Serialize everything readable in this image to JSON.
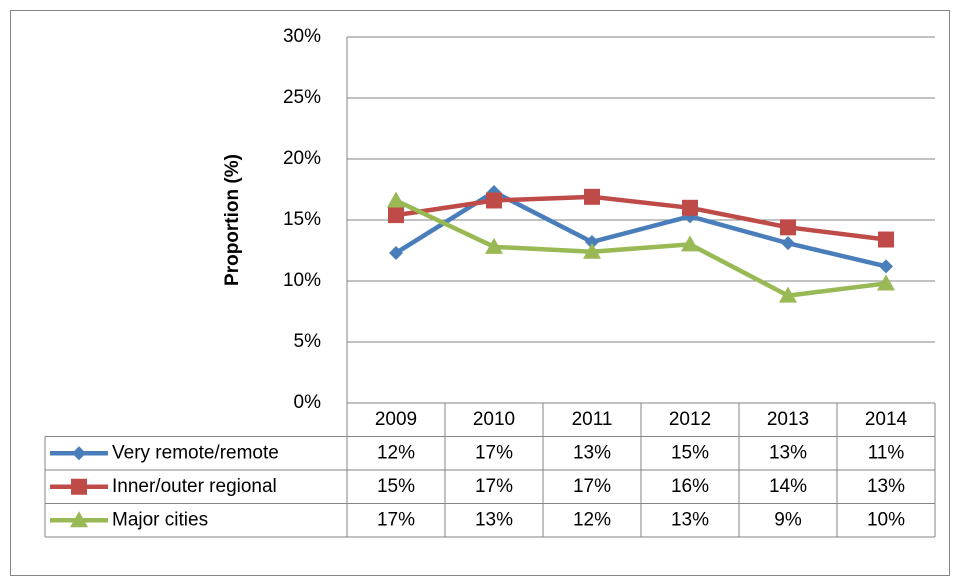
{
  "chart_data": {
    "type": "line",
    "y_label": "Proportion (%)",
    "categories": [
      "2009",
      "2010",
      "2011",
      "2012",
      "2013",
      "2014"
    ],
    "ylim": [
      0,
      30
    ],
    "yticks": [
      {
        "value": 0,
        "label": "0%"
      },
      {
        "value": 5,
        "label": "5%"
      },
      {
        "value": 10,
        "label": "10%"
      },
      {
        "value": 15,
        "label": "15%"
      },
      {
        "value": 20,
        "label": "20%"
      },
      {
        "value": 25,
        "label": "25%"
      },
      {
        "value": 30,
        "label": "30%"
      }
    ],
    "grid": true,
    "series": [
      {
        "name": "Very remote/remote",
        "color": "#4a7ebb",
        "marker": "diamond",
        "values": [
          12.3,
          17.3,
          13.2,
          15.3,
          13.1,
          11.2
        ],
        "value_labels": [
          "12%",
          "17%",
          "13%",
          "15%",
          "13%",
          "11%"
        ]
      },
      {
        "name": "Inner/outer regional",
        "color": "#be4b48",
        "marker": "square",
        "values": [
          15.4,
          16.6,
          16.9,
          16.0,
          14.4,
          13.4
        ],
        "value_labels": [
          "15%",
          "17%",
          "17%",
          "16%",
          "14%",
          "13%"
        ]
      },
      {
        "name": "Major cities",
        "color": "#98b954",
        "marker": "triangle",
        "values": [
          16.6,
          12.8,
          12.4,
          13.0,
          8.8,
          9.8
        ],
        "value_labels": [
          "17%",
          "13%",
          "12%",
          "13%",
          "9%",
          "10%"
        ]
      }
    ]
  }
}
